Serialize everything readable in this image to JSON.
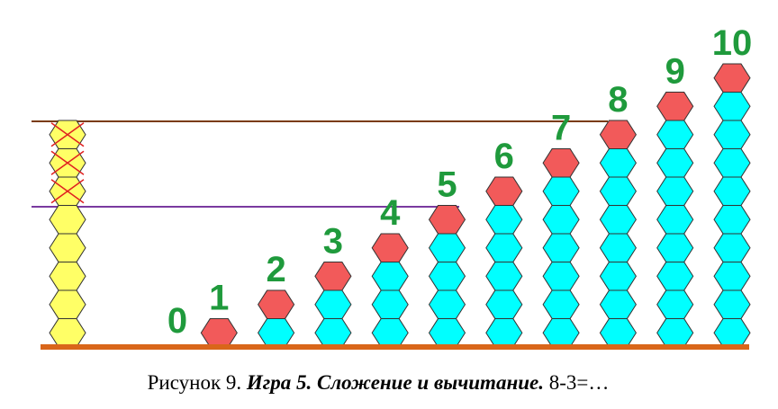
{
  "columns": [
    0,
    1,
    2,
    3,
    4,
    5,
    6,
    7,
    8,
    9,
    10
  ],
  "caption": {
    "prefix": "Рисунок 9. ",
    "title": "Игра 5. Сложение и вычитание.",
    "expression": " 8-3=…"
  }
}
